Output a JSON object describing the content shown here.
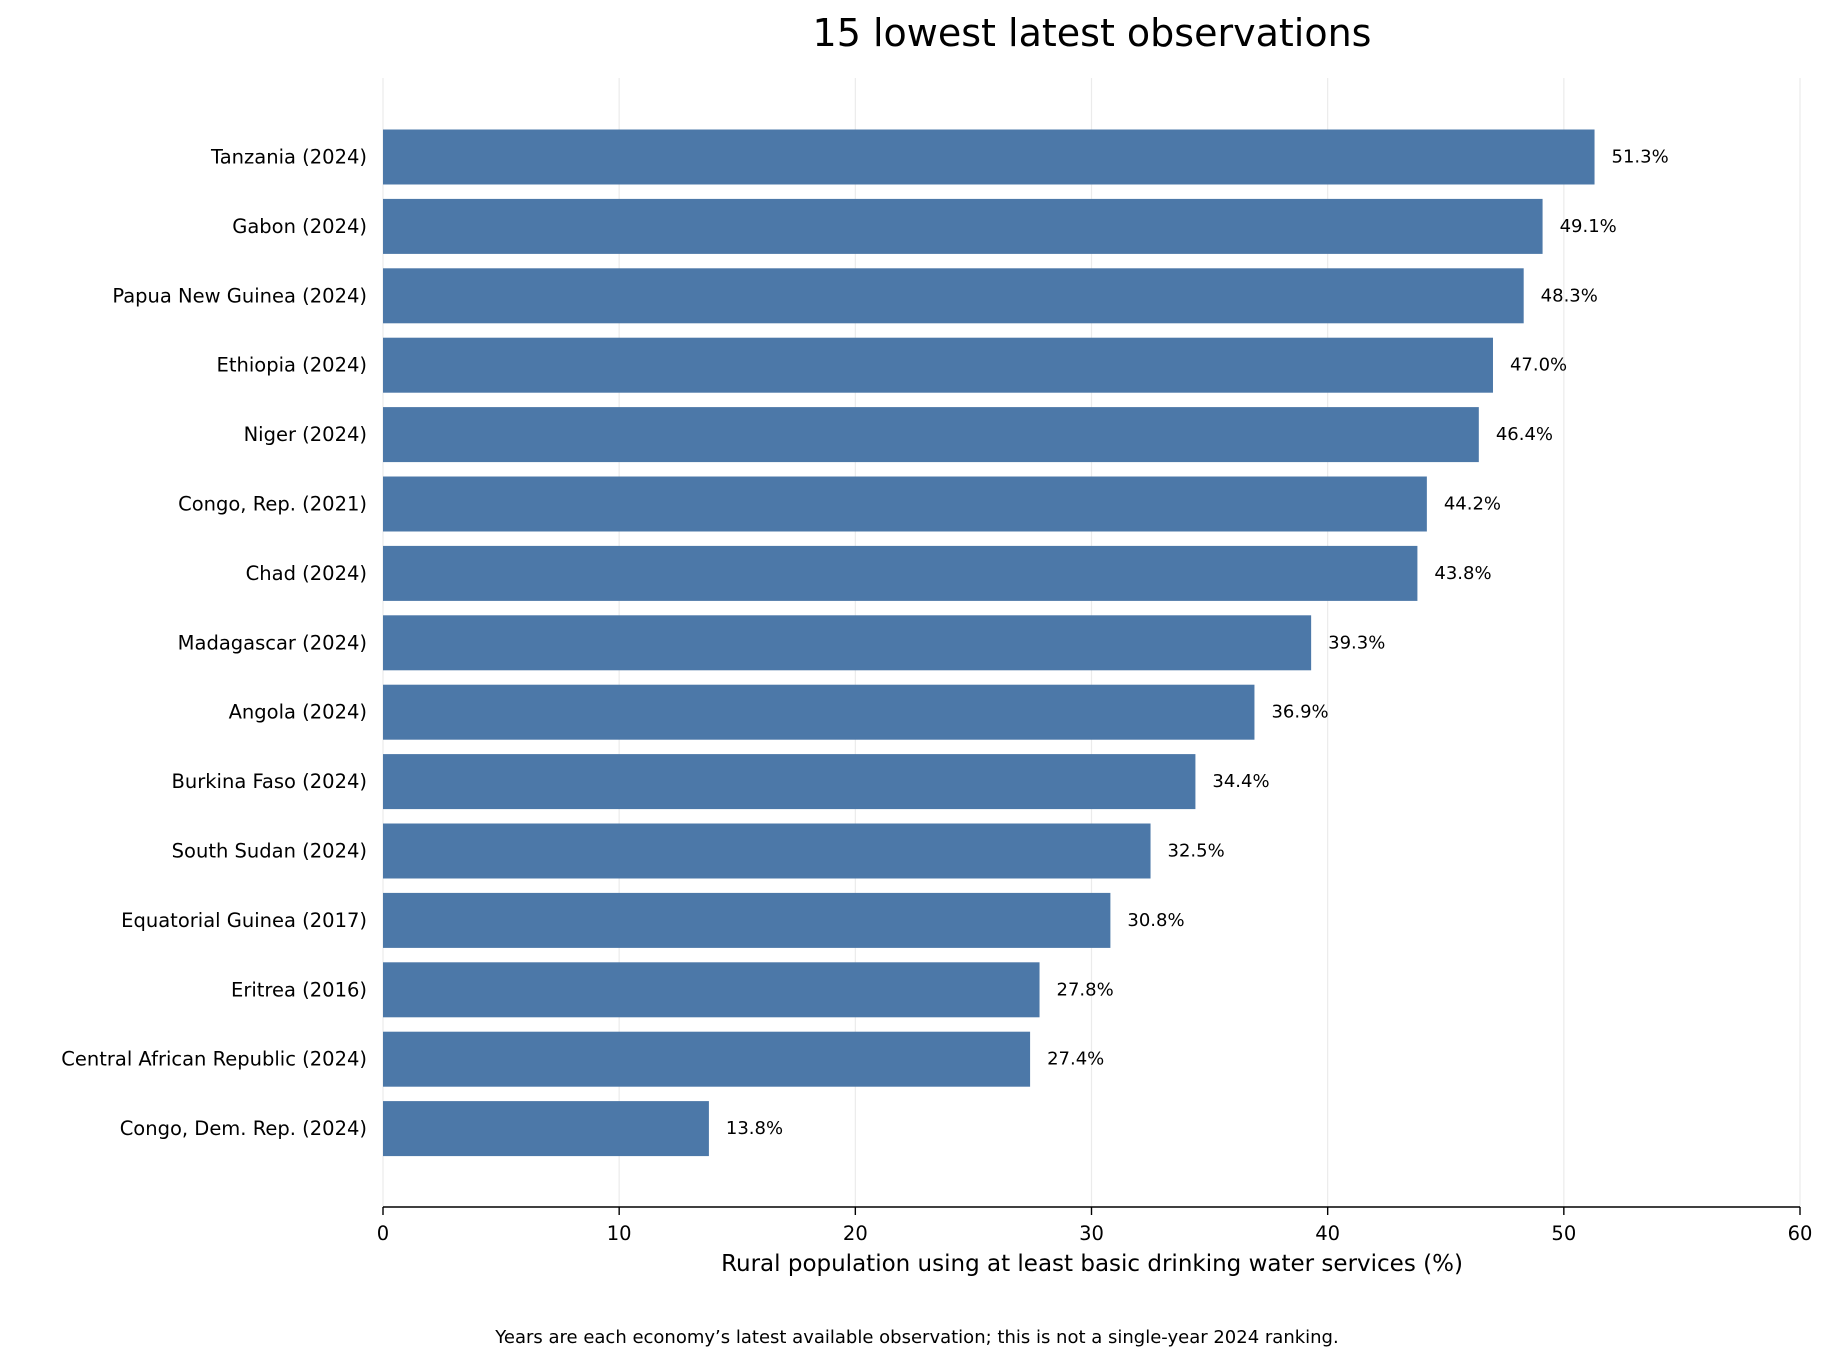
{
  "chart_data": {
    "type": "bar",
    "orientation": "horizontal",
    "title": "15 lowest latest observations",
    "xlabel": "Rural population using at least basic drinking water services (%)",
    "ylabel": "",
    "xlim": [
      0,
      60
    ],
    "xticks": [
      0,
      10,
      20,
      30,
      40,
      50,
      60
    ],
    "grid": "vertical",
    "bar_color": "#4c78a8",
    "categories": [
      "Tanzania (2024)",
      "Gabon (2024)",
      "Papua New Guinea (2024)",
      "Ethiopia (2024)",
      "Niger (2024)",
      "Congo, Rep. (2021)",
      "Chad (2024)",
      "Madagascar (2024)",
      "Angola (2024)",
      "Burkina Faso (2024)",
      "South Sudan (2024)",
      "Equatorial Guinea (2017)",
      "Eritrea (2016)",
      "Central African Republic (2024)",
      "Congo, Dem. Rep. (2024)"
    ],
    "values": [
      51.3,
      49.1,
      48.3,
      47.0,
      46.4,
      44.2,
      43.8,
      39.3,
      36.9,
      34.4,
      32.5,
      30.8,
      27.8,
      27.4,
      13.8
    ],
    "value_labels": [
      "51.3%",
      "49.1%",
      "48.3%",
      "47.0%",
      "46.4%",
      "44.2%",
      "43.8%",
      "39.3%",
      "36.9%",
      "34.4%",
      "32.5%",
      "30.8%",
      "27.8%",
      "27.4%",
      "13.8%"
    ],
    "footnote": "Years are each economy’s latest available observation; this is not a single-year 2024 ranking."
  }
}
